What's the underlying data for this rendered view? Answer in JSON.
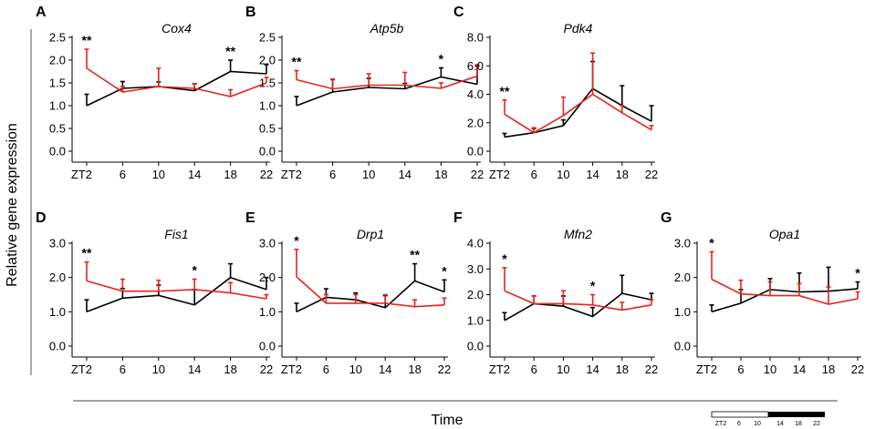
{
  "figure": {
    "ylabel": "Relative gene expression",
    "xlabel": "Time",
    "colors": {
      "ctrl": "#000000",
      "treat": "#e8231f"
    },
    "timebar": {
      "labels": [
        "ZT2",
        "6",
        "10",
        "14",
        "18",
        "22"
      ]
    }
  },
  "chart_data": [
    {
      "type": "line",
      "letter": "A",
      "title": "Cox4",
      "categories": [
        "ZT2",
        "6",
        "10",
        "14",
        "18",
        "22"
      ],
      "ylim": [
        0,
        2.5
      ],
      "yticks": [
        "0.0",
        "0.5",
        "1.0",
        "1.5",
        "2.0",
        "2.5"
      ],
      "series": [
        {
          "name": "black",
          "values": [
            1.0,
            1.38,
            1.42,
            1.33,
            1.75,
            1.7
          ],
          "err": [
            0.25,
            0.15,
            0.1,
            0.15,
            0.25,
            0.2
          ]
        },
        {
          "name": "red",
          "values": [
            1.82,
            1.3,
            1.42,
            1.38,
            1.2,
            1.5
          ],
          "err": [
            0.42,
            0.12,
            0.4,
            0.1,
            0.15,
            0.12
          ]
        }
      ],
      "annotations": [
        {
          "i": 0,
          "text": "**"
        },
        {
          "i": 4,
          "text": "**"
        }
      ]
    },
    {
      "type": "line",
      "letter": "B",
      "title": "Atp5b",
      "categories": [
        "ZT2",
        "6",
        "10",
        "14",
        "18",
        "22"
      ],
      "ylim": [
        0,
        2.5
      ],
      "yticks": [
        "0.0",
        "0.5",
        "1.0",
        "1.5",
        "2.0",
        "2.5"
      ],
      "series": [
        {
          "name": "black",
          "values": [
            1.0,
            1.3,
            1.4,
            1.37,
            1.63,
            1.47
          ],
          "err": [
            0.2,
            0.28,
            0.2,
            0.12,
            0.2,
            0.4
          ]
        },
        {
          "name": "red",
          "values": [
            1.57,
            1.37,
            1.45,
            1.45,
            1.38,
            1.65
          ],
          "err": [
            0.2,
            0.2,
            0.25,
            0.28,
            0.12,
            0.25
          ]
        }
      ],
      "annotations": [
        {
          "i": 0,
          "text": "**"
        },
        {
          "i": 4,
          "text": "*"
        }
      ]
    },
    {
      "type": "line",
      "letter": "C",
      "title": "Pdk4",
      "categories": [
        "ZT2",
        "6",
        "10",
        "14",
        "18",
        "22"
      ],
      "ylim": [
        0,
        8
      ],
      "yticks": [
        "0.0",
        "2.0",
        "4.0",
        "6.0",
        "8.0"
      ],
      "series": [
        {
          "name": "black",
          "values": [
            1.0,
            1.3,
            1.8,
            4.4,
            3.2,
            2.1
          ],
          "err": [
            0.25,
            0.3,
            0.4,
            1.9,
            1.4,
            1.1
          ]
        },
        {
          "name": "red",
          "values": [
            2.6,
            1.3,
            2.5,
            4.0,
            2.7,
            1.5
          ],
          "err": [
            1.0,
            0.35,
            1.3,
            2.9,
            0.5,
            0.3
          ]
        }
      ],
      "annotations": [
        {
          "i": 0,
          "text": "**"
        }
      ]
    },
    {
      "type": "line",
      "letter": "D",
      "title": "Fis1",
      "categories": [
        "ZT2",
        "6",
        "10",
        "14",
        "18",
        "22"
      ],
      "ylim": [
        0,
        3
      ],
      "yticks": [
        "0.0",
        "1.0",
        "2.0",
        "3.0"
      ],
      "series": [
        {
          "name": "black",
          "values": [
            1.0,
            1.4,
            1.48,
            1.2,
            2.0,
            1.65
          ],
          "err": [
            0.35,
            0.28,
            0.3,
            0.45,
            0.4,
            0.35
          ]
        },
        {
          "name": "red",
          "values": [
            1.9,
            1.6,
            1.6,
            1.65,
            1.55,
            1.38
          ],
          "err": [
            0.55,
            0.35,
            0.32,
            0.3,
            0.3,
            0.12
          ]
        }
      ],
      "annotations": [
        {
          "i": 0,
          "text": "**"
        },
        {
          "i": 3,
          "text": "*"
        }
      ]
    },
    {
      "type": "line",
      "letter": "E",
      "title": "Drp1",
      "categories": [
        "ZT2",
        "6",
        "10",
        "14",
        "18",
        "22"
      ],
      "ylim": [
        0,
        3
      ],
      "yticks": [
        "0.0",
        "1.0",
        "2.0",
        "3.0"
      ],
      "series": [
        {
          "name": "black",
          "values": [
            1.0,
            1.42,
            1.35,
            1.12,
            1.9,
            1.58
          ],
          "err": [
            0.25,
            0.25,
            0.2,
            0.35,
            0.5,
            0.35
          ]
        },
        {
          "name": "red",
          "values": [
            2.02,
            1.25,
            1.25,
            1.25,
            1.15,
            1.2
          ],
          "err": [
            0.8,
            0.25,
            0.25,
            0.25,
            0.2,
            0.2
          ]
        }
      ],
      "annotations": [
        {
          "i": 0,
          "text": "*"
        },
        {
          "i": 4,
          "text": "**"
        },
        {
          "i": 5,
          "text": "*"
        }
      ]
    },
    {
      "type": "line",
      "letter": "F",
      "title": "Mfn2",
      "categories": [
        "ZT2",
        "6",
        "10",
        "14",
        "18",
        "22"
      ],
      "ylim": [
        0,
        4
      ],
      "yticks": [
        "0.0",
        "1.0",
        "2.0",
        "3.0",
        "4.0"
      ],
      "series": [
        {
          "name": "black",
          "values": [
            1.0,
            1.65,
            1.55,
            1.15,
            2.05,
            1.8
          ],
          "err": [
            0.3,
            0.3,
            0.4,
            0.35,
            0.7,
            0.25
          ]
        },
        {
          "name": "red",
          "values": [
            2.15,
            1.65,
            1.65,
            1.6,
            1.4,
            1.6
          ],
          "err": [
            0.9,
            0.3,
            0.5,
            0.4,
            0.3,
            0.2
          ]
        }
      ],
      "annotations": [
        {
          "i": 0,
          "text": "*"
        },
        {
          "i": 3,
          "text": "*"
        }
      ]
    },
    {
      "type": "line",
      "letter": "G",
      "title": "Opa1",
      "categories": [
        "ZT2",
        "6",
        "10",
        "14",
        "18",
        "22"
      ],
      "ylim": [
        0,
        3
      ],
      "yticks": [
        "0.0",
        "1.0",
        "2.0",
        "3.0"
      ],
      "series": [
        {
          "name": "black",
          "values": [
            1.0,
            1.25,
            1.65,
            1.58,
            1.6,
            1.67
          ],
          "err": [
            0.2,
            0.4,
            0.32,
            0.55,
            0.7,
            0.2
          ]
        },
        {
          "name": "red",
          "values": [
            1.95,
            1.52,
            1.47,
            1.47,
            1.22,
            1.38
          ],
          "err": [
            0.8,
            0.4,
            0.4,
            0.35,
            0.5,
            0.2
          ]
        }
      ],
      "annotations": [
        {
          "i": 0,
          "text": "*"
        },
        {
          "i": 5,
          "text": "*"
        }
      ]
    }
  ]
}
